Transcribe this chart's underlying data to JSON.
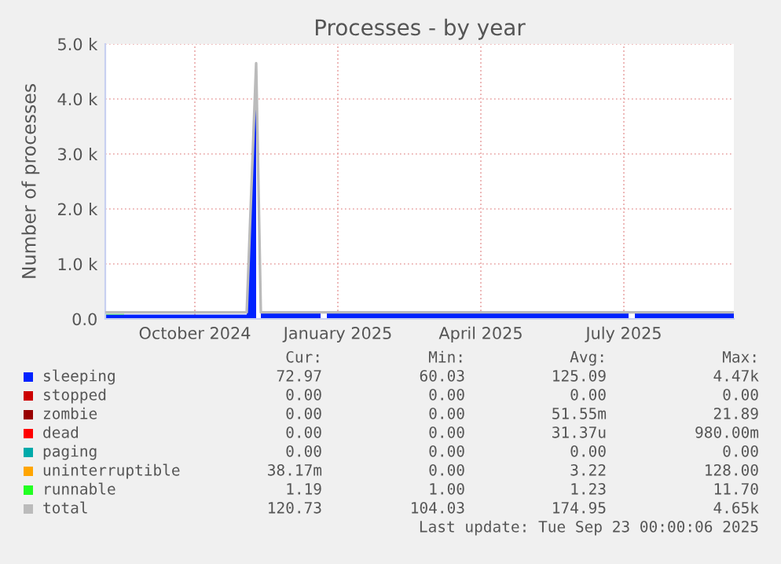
{
  "chart_data": {
    "type": "area",
    "stacked": true,
    "title": "Processes - by year",
    "ylabel": "Number of processes",
    "x": [
      "2024-08-19",
      "2024-08-31",
      "2024-09-01",
      "2024-11-17",
      "2024-11-23",
      "2024-11-24",
      "2024-11-26",
      "2025-01-03",
      "2025-01-05",
      "2025-01-07",
      "2025-07-18",
      "2025-07-20",
      "2025-07-22",
      "2025-09-23"
    ],
    "series": [
      {
        "name": "sleeping",
        "color": "#0022ff",
        "values": [
          80,
          80,
          80,
          80,
          4470,
          null,
          100,
          100,
          null,
          100,
          100,
          null,
          100,
          100
        ]
      },
      {
        "name": "stopped",
        "color": "#cc0000",
        "values": [
          null,
          null,
          null,
          null,
          null,
          null,
          null,
          null,
          null,
          null,
          null,
          null,
          null,
          null
        ]
      },
      {
        "name": "zombie",
        "color": "#990000",
        "values": [
          null,
          null,
          null,
          null,
          null,
          null,
          null,
          null,
          null,
          null,
          null,
          null,
          null,
          null
        ]
      },
      {
        "name": "dead",
        "color": "#ff0000",
        "values": [
          null,
          null,
          null,
          null,
          null,
          null,
          null,
          null,
          null,
          null,
          null,
          null,
          null,
          null
        ]
      },
      {
        "name": "paging",
        "color": "#00aaaa",
        "values": [
          null,
          null,
          null,
          null,
          null,
          null,
          null,
          null,
          null,
          null,
          null,
          null,
          null,
          null
        ]
      },
      {
        "name": "uninterruptible",
        "color": "#ffa500",
        "values": [
          null,
          null,
          null,
          null,
          null,
          null,
          null,
          null,
          null,
          null,
          null,
          null,
          null,
          null
        ]
      },
      {
        "name": "runnable",
        "color": "#22ff22",
        "values": [
          10,
          10,
          null,
          null,
          null,
          null,
          null,
          null,
          null,
          null,
          null,
          null,
          null,
          null
        ]
      },
      {
        "name": "total",
        "color": "#bbbbbb",
        "type": "line",
        "x": [
          "2024-08-19",
          "2024-08-31",
          "2024-09-01",
          "2024-11-17",
          "2024-11-23",
          "2024-11-26",
          "2025-01-03",
          "2025-01-07",
          "2025-07-18",
          "2025-07-22",
          "2025-09-23"
        ],
        "values": [
          120,
          120,
          120,
          120,
          4650,
          120,
          120,
          120,
          120,
          120,
          120
        ]
      }
    ],
    "xlim": [
      "2024-08-19",
      "2025-09-23"
    ],
    "xticks": [
      {
        "value": "2024-10-15",
        "label": "October 2024"
      },
      {
        "value": "2025-01-14",
        "label": "January 2025"
      },
      {
        "value": "2025-04-15",
        "label": "April 2025"
      },
      {
        "value": "2025-07-15",
        "label": "July 2025"
      }
    ],
    "ylim": [
      0,
      5000
    ],
    "yticks": [
      {
        "value": 0,
        "label": "0.0"
      },
      {
        "value": 1000,
        "label": "1.0 k"
      },
      {
        "value": 2000,
        "label": "2.0 k"
      },
      {
        "value": 3000,
        "label": "3.0 k"
      },
      {
        "value": 4000,
        "label": "4.0 k"
      },
      {
        "value": 5000,
        "label": "5.0 k"
      }
    ],
    "grid": true,
    "legend": "bottom",
    "annotations": [
      "Cur:",
      "Min:",
      "Avg:",
      "Max:",
      "72.97",
      "60.03",
      "125.09",
      "4.47k",
      "0.00",
      "0.00",
      "0.00",
      "0.00",
      "0.00",
      "0.00",
      "51.55m",
      "21.89",
      "0.00",
      "0.00",
      "31.37u",
      "980.00m",
      "0.00",
      "0.00",
      "0.00",
      "0.00",
      "38.17m",
      "0.00",
      "3.22",
      "128.00",
      "1.19",
      "1.00",
      "1.23",
      "11.70",
      "120.73",
      "104.03",
      "174.95",
      "4.65k",
      "Last update: Tue Sep 23 00:00:06 2025"
    ]
  }
}
